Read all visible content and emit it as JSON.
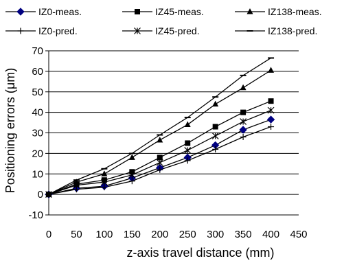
{
  "chart_data": {
    "type": "line",
    "title": "",
    "xlabel": "z-axis travel distance (mm)",
    "ylabel": "Positioning errors (μm)",
    "xlim": [
      0,
      450
    ],
    "ylim": [
      -10,
      70
    ],
    "x_ticks": [
      0,
      50,
      100,
      150,
      200,
      250,
      300,
      350,
      400,
      450
    ],
    "y_ticks": [
      -10,
      0,
      10,
      20,
      30,
      40,
      50,
      60,
      70
    ],
    "grid": "horizontal",
    "legend_position": "top",
    "x": [
      0,
      50,
      100,
      150,
      200,
      250,
      300,
      350,
      400
    ],
    "series": [
      {
        "name": "IZ0-meas.",
        "marker": "diamond",
        "values": [
          0,
          3,
          4,
          8,
          13,
          18,
          24,
          31.5,
          36.5
        ]
      },
      {
        "name": "IZ45-meas.",
        "marker": "square",
        "values": [
          0,
          5,
          7,
          11,
          18,
          25,
          33,
          40,
          45.5
        ]
      },
      {
        "name": "IZ138-meas.",
        "marker": "triangle",
        "values": [
          0,
          6,
          10,
          18,
          26.5,
          34,
          44,
          52,
          60.5
        ]
      },
      {
        "name": "IZ0-pred.",
        "marker": "plus",
        "values": [
          0,
          2.5,
          3.5,
          6.5,
          12,
          16.5,
          22,
          28,
          33
        ]
      },
      {
        "name": "IZ45-pred.",
        "marker": "asterisk",
        "values": [
          0,
          4.5,
          6,
          9.5,
          15.5,
          21.5,
          28.5,
          35.5,
          41
        ]
      },
      {
        "name": "IZ138-pred.",
        "marker": "dash",
        "values": [
          0,
          7,
          12.5,
          20,
          29,
          37.5,
          47.5,
          58,
          66.5
        ]
      }
    ]
  }
}
